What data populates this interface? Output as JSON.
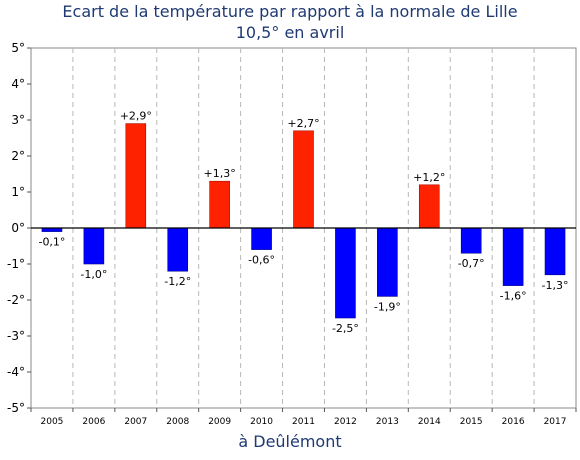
{
  "chart_data": {
    "type": "bar",
    "title": "Ecart de la température par rapport à la normale de Lille",
    "subtitle": "10,5° en avril",
    "xlabel": "à Deûlémont",
    "ylabel": "",
    "categories": [
      "2005",
      "2006",
      "2007",
      "2008",
      "2009",
      "2010",
      "2011",
      "2012",
      "2013",
      "2014",
      "2015",
      "2016",
      "2017"
    ],
    "values": [
      -0.1,
      -1.0,
      2.9,
      -1.2,
      1.3,
      -0.6,
      2.7,
      -2.5,
      -1.9,
      1.2,
      -0.7,
      -1.6,
      -1.3
    ],
    "data_labels": [
      "-0,1°",
      "-1,0°",
      "+2,9°",
      "-1,2°",
      "+1,3°",
      "-0,6°",
      "+2,7°",
      "-2,5°",
      "-1,9°",
      "+1,2°",
      "-0,7°",
      "-1,6°",
      "-1,3°"
    ],
    "ylim": [
      -5,
      5
    ],
    "yticks": [
      5,
      4,
      3,
      2,
      1,
      0,
      -1,
      -2,
      -3,
      -4,
      -5
    ],
    "ytick_labels": [
      "5°",
      "4°",
      "3°",
      "2°",
      "1°",
      "0°",
      "-1°",
      "-2°",
      "-3°",
      "-4°",
      "-5°"
    ],
    "grid": true,
    "colors": {
      "positive": "#ff2200",
      "negative": "#0000ff",
      "title": "#1f3a73"
    }
  }
}
